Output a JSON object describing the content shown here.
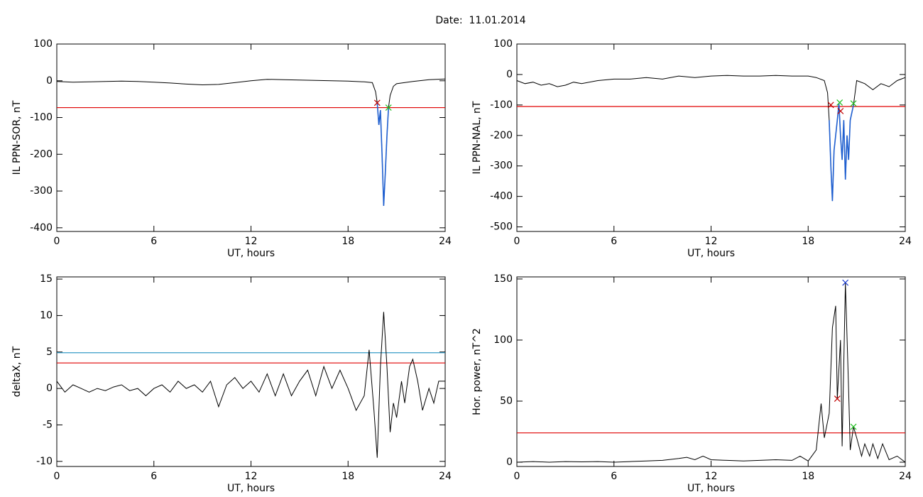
{
  "title": "Date:  11.01.2014",
  "chart_data": [
    {
      "type": "line",
      "ylabel": "IL PPN-SOR, nT",
      "xlabel": "UT, hours",
      "xlim": [
        0,
        24
      ],
      "xticks": [
        0,
        6,
        12,
        18,
        24
      ],
      "ylim": [
        -410,
        100
      ],
      "yticks": [
        100,
        0,
        -100,
        -200,
        -300,
        -400
      ],
      "x": [
        0,
        1,
        2,
        3,
        4,
        5,
        6,
        7,
        8,
        9,
        10,
        11,
        12,
        13,
        14,
        15,
        16,
        17,
        18,
        19,
        19.5,
        19.7,
        19.8,
        19.9,
        20.0,
        20.1,
        20.2,
        20.3,
        20.4,
        20.5,
        20.6,
        20.8,
        21,
        22,
        23,
        24
      ],
      "series": [
        {
          "color": "#000000",
          "values": [
            -2,
            -4,
            -3,
            -2,
            -1,
            -2,
            -4,
            -6,
            -9,
            -11,
            -10,
            -5,
            0,
            4,
            3,
            2,
            1,
            0,
            -1,
            -3,
            -5,
            -30,
            -60,
            -120,
            -80,
            -200,
            -340,
            -250,
            -150,
            -73,
            -40,
            -15,
            -8,
            -2,
            3,
            5
          ]
        },
        {
          "color": "#1f5fd0",
          "values": [
            null,
            null,
            null,
            null,
            null,
            null,
            null,
            null,
            null,
            null,
            null,
            null,
            null,
            null,
            null,
            null,
            null,
            null,
            null,
            null,
            null,
            null,
            -60,
            -120,
            -80,
            -200,
            -340,
            -250,
            -150,
            -73,
            null,
            null,
            null,
            null,
            null,
            null
          ]
        }
      ],
      "hlines": [
        {
          "value": -73,
          "color": "#e00000"
        }
      ],
      "markers": [
        {
          "x": 19.8,
          "y": -60,
          "color": "#c00000"
        },
        {
          "x": 20.5,
          "y": -73,
          "color": "#20c020"
        }
      ]
    },
    {
      "type": "line",
      "ylabel": "IL PPN-NAL, nT",
      "xlabel": "UT, hours",
      "xlim": [
        0,
        24
      ],
      "xticks": [
        0,
        6,
        12,
        18,
        24
      ],
      "ylim": [
        -515,
        100
      ],
      "yticks": [
        100,
        0,
        -100,
        -200,
        -300,
        -400,
        -500
      ],
      "x": [
        0,
        0.5,
        1,
        1.5,
        2,
        2.5,
        3,
        3.5,
        4,
        5,
        6,
        7,
        8,
        9,
        10,
        11,
        12,
        13,
        14,
        15,
        16,
        17,
        18,
        18.5,
        19,
        19.2,
        19.3,
        19.4,
        19.5,
        19.6,
        19.8,
        19.9,
        20.0,
        20.1,
        20.2,
        20.3,
        20.4,
        20.5,
        20.6,
        20.8,
        21,
        21.5,
        22,
        22.5,
        23,
        23.5,
        24
      ],
      "series": [
        {
          "color": "#000000",
          "values": [
            -20,
            -30,
            -25,
            -35,
            -30,
            -40,
            -35,
            -25,
            -30,
            -20,
            -15,
            -15,
            -10,
            -15,
            -5,
            -10,
            -5,
            -3,
            -5,
            -5,
            -3,
            -5,
            -5,
            -10,
            -20,
            -60,
            -150,
            -300,
            -415,
            -250,
            -150,
            -95,
            -200,
            -280,
            -150,
            -345,
            -200,
            -280,
            -150,
            -100,
            -20,
            -30,
            -50,
            -30,
            -40,
            -20,
            -10
          ]
        },
        {
          "color": "#1f5fd0",
          "values": [
            null,
            null,
            null,
            null,
            null,
            null,
            null,
            null,
            null,
            null,
            null,
            null,
            null,
            null,
            null,
            null,
            null,
            null,
            null,
            null,
            null,
            null,
            null,
            null,
            null,
            null,
            -150,
            -300,
            -415,
            -250,
            -150,
            -95,
            -200,
            -280,
            -150,
            -345,
            -200,
            -280,
            -150,
            -100,
            null,
            null,
            null,
            null,
            null,
            null,
            null
          ]
        }
      ],
      "hlines": [
        {
          "value": -105,
          "color": "#e00000"
        }
      ],
      "markers": [
        {
          "x": 19.4,
          "y": -100,
          "color": "#c00000"
        },
        {
          "x": 19.95,
          "y": -92,
          "color": "#20c020"
        },
        {
          "x": 20.0,
          "y": -120,
          "color": "#c00000"
        },
        {
          "x": 20.8,
          "y": -95,
          "color": "#20c020"
        }
      ]
    },
    {
      "type": "line",
      "ylabel": "deltaX, nT",
      "xlabel": "UT, hours",
      "xlim": [
        0,
        24
      ],
      "xticks": [
        0,
        6,
        12,
        18,
        24
      ],
      "ylim": [
        -10.7,
        15.3
      ],
      "yticks": [
        15,
        10,
        5,
        0,
        -5,
        -10
      ],
      "x": [
        0,
        0.5,
        1,
        1.5,
        2,
        2.5,
        3,
        3.5,
        4,
        4.5,
        5,
        5.5,
        6,
        6.5,
        7,
        7.5,
        8,
        8.5,
        9,
        9.5,
        10,
        10.5,
        11,
        11.5,
        12,
        12.5,
        13,
        13.5,
        14,
        14.5,
        15,
        15.5,
        16,
        16.5,
        17,
        17.5,
        18,
        18.5,
        19,
        19.3,
        19.6,
        19.8,
        20,
        20.2,
        20.4,
        20.6,
        20.8,
        21,
        21.3,
        21.5,
        21.8,
        22,
        22.3,
        22.6,
        23,
        23.3,
        23.6,
        24
      ],
      "series": [
        {
          "color": "#000000",
          "values": [
            1,
            -0.5,
            0.5,
            0,
            -0.5,
            0,
            -0.3,
            0.2,
            0.5,
            -0.3,
            0,
            -1,
            0,
            0.5,
            -0.5,
            1,
            0,
            0.5,
            -0.5,
            1,
            -2.5,
            0.5,
            1.5,
            0,
            1,
            -0.5,
            2,
            -1,
            2,
            -1,
            1,
            2.5,
            -1,
            3,
            0,
            2.5,
            0,
            -3,
            -1,
            5.3,
            -3,
            -9.5,
            3,
            10.5,
            3,
            -6,
            -2,
            -4,
            1,
            -2,
            3,
            4,
            1,
            -3,
            0,
            -2,
            1,
            1
          ]
        }
      ],
      "hlines": [
        {
          "value": 4.9,
          "color": "#1f8fc0"
        },
        {
          "value": 3.5,
          "color": "#e00000"
        }
      ],
      "markers": []
    },
    {
      "type": "line",
      "ylabel": "Hor. power, nT^2",
      "xlabel": "UT, hours",
      "xlim": [
        0,
        24
      ],
      "xticks": [
        0,
        6,
        12,
        18,
        24
      ],
      "ylim": [
        -3.5,
        151.7
      ],
      "yticks": [
        150,
        100,
        50,
        0
      ],
      "x": [
        0,
        1,
        2,
        3,
        4,
        5,
        6,
        7,
        8,
        9,
        10,
        10.5,
        11,
        11.5,
        12,
        13,
        14,
        15,
        16,
        17,
        17.5,
        18,
        18.5,
        18.8,
        19,
        19.3,
        19.5,
        19.7,
        19.8,
        20,
        20.1,
        20.3,
        20.5,
        20.6,
        20.8,
        21,
        21.3,
        21.5,
        21.8,
        22,
        22.3,
        22.6,
        23,
        23.5,
        24
      ],
      "series": [
        {
          "color": "#000000",
          "values": [
            0,
            0.5,
            0,
            0.5,
            0.3,
            0.5,
            0,
            0.5,
            1,
            1.5,
            3,
            4,
            2,
            5,
            2,
            1.5,
            1,
            1.5,
            2,
            1.5,
            5,
            1,
            10,
            48,
            20,
            40,
            110,
            128,
            52,
            100,
            13,
            147,
            60,
            10,
            29,
            20,
            5,
            15,
            5,
            15,
            3,
            15,
            2,
            5,
            0
          ]
        }
      ],
      "hlines": [
        {
          "value": 24,
          "color": "#e00000"
        }
      ],
      "markers": [
        {
          "x": 19.8,
          "y": 52,
          "color": "#c00000"
        },
        {
          "x": 20.3,
          "y": 147,
          "color": "#2040d0"
        },
        {
          "x": 20.8,
          "y": 29,
          "color": "#20c020"
        }
      ]
    }
  ]
}
